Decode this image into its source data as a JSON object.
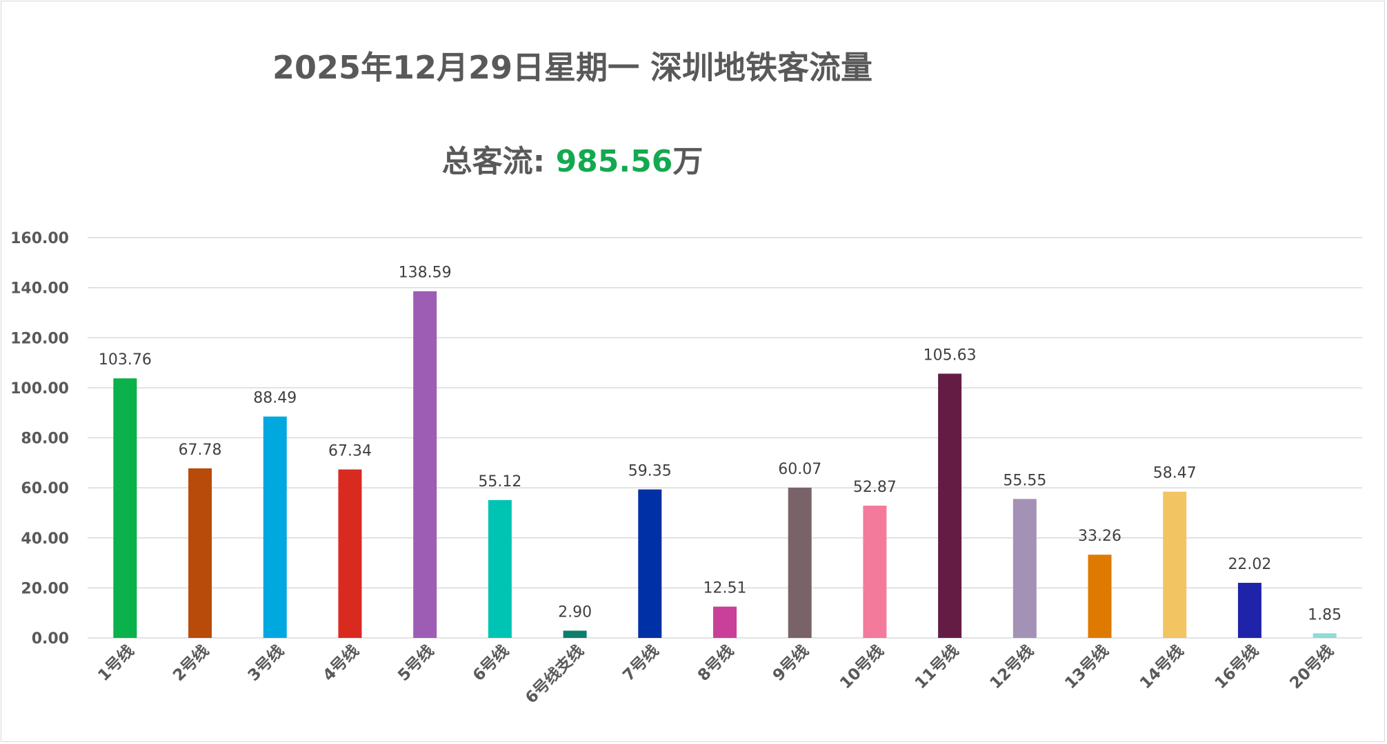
{
  "chart_data": {
    "type": "bar",
    "title": "2025年12月29日星期一  深圳地铁客流量",
    "subtitle_label": "总客流: ",
    "subtitle_value": "985.56",
    "subtitle_unit": "万",
    "xlabel": "",
    "ylabel": "",
    "ylim": [
      0,
      160
    ],
    "yticks": [
      "0.00",
      "20.00",
      "40.00",
      "60.00",
      "80.00",
      "100.00",
      "120.00",
      "140.00",
      "160.00"
    ],
    "grid": true,
    "legend": "none",
    "categories": [
      "1号线",
      "2号线",
      "3号线",
      "4号线",
      "5号线",
      "6号线",
      "6号线支线",
      "7号线",
      "8号线",
      "9号线",
      "10号线",
      "11号线",
      "12号线",
      "13号线",
      "14号线",
      "16号线",
      "20号线"
    ],
    "values": [
      103.76,
      67.78,
      88.49,
      67.34,
      138.59,
      55.12,
      2.9,
      59.35,
      12.51,
      60.07,
      52.87,
      105.63,
      55.55,
      33.26,
      58.47,
      22.02,
      1.85
    ],
    "labels": [
      "103.76",
      "67.78",
      "88.49",
      "67.34",
      "138.59",
      "55.12",
      "2.90",
      "59.35",
      "12.51",
      "60.07",
      "52.87",
      "105.63",
      "55.55",
      "33.26",
      "58.47",
      "22.02",
      "1.85"
    ],
    "colors": [
      "#0bb14a",
      "#b84a0a",
      "#00a8e0",
      "#d92a20",
      "#9e5db5",
      "#00c4b3",
      "#0b7f6a",
      "#0030a6",
      "#c9409a",
      "#7a6368",
      "#f47a9c",
      "#651c44",
      "#a392b6",
      "#df7a00",
      "#f2c462",
      "#1f23aa",
      "#8edbd9"
    ]
  }
}
